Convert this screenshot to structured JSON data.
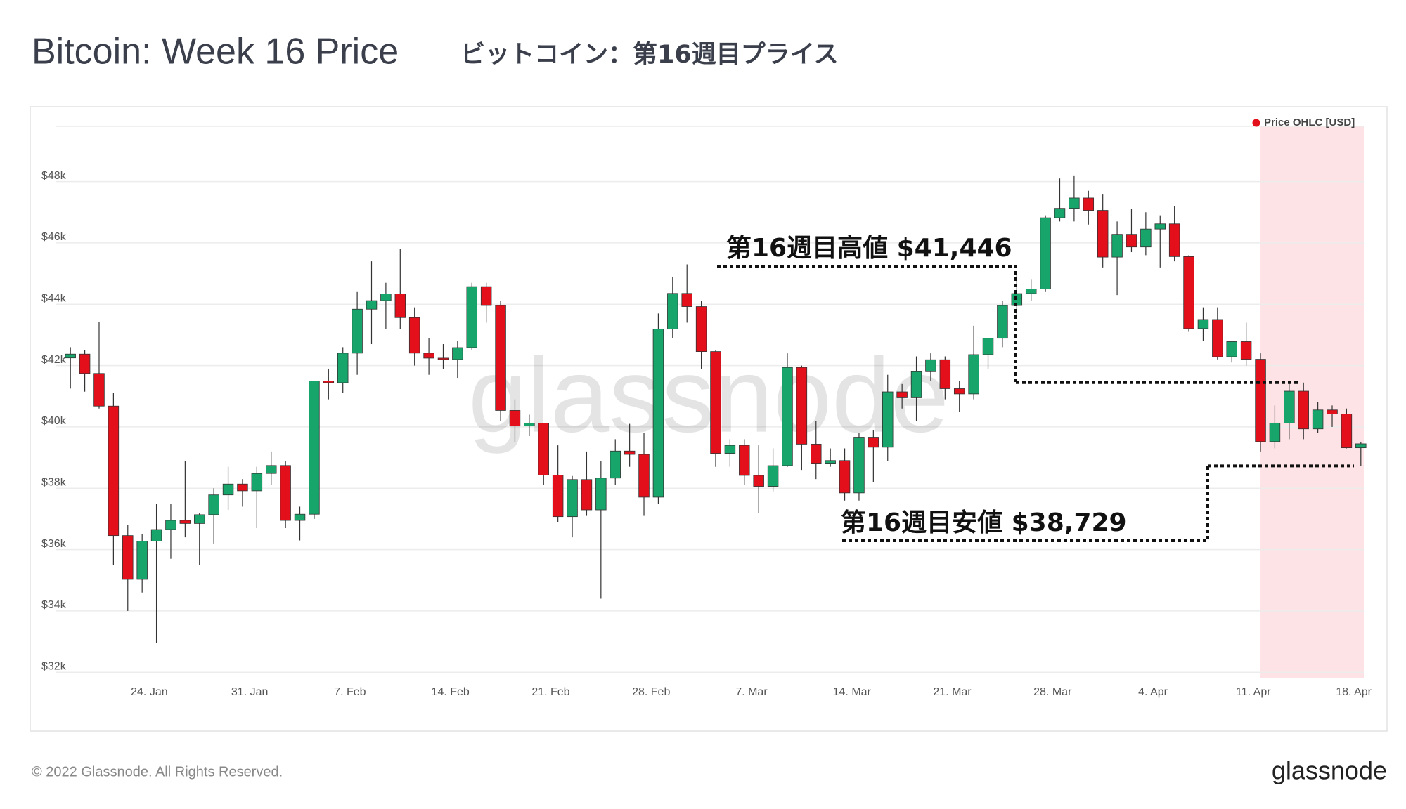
{
  "chart_data": {
    "type": "candlestick",
    "title": "Bitcoin: Week 16 Price",
    "subtitle": "ビットコイン：第16週目プライス",
    "watermark": "glassnode",
    "footer": "© 2022 Glassnode. All Rights Reserved.",
    "logo": "glassnode",
    "legend_position": "top-right",
    "grid": true,
    "categories": [
      null,
      null,
      null,
      null,
      null,
      null,
      "24. Jan",
      null,
      null,
      null,
      null,
      null,
      null,
      "31. Jan",
      null,
      null,
      null,
      null,
      null,
      null,
      "7. Feb",
      null,
      null,
      null,
      null,
      null,
      null,
      "14. Feb",
      null,
      null,
      null,
      null,
      null,
      null,
      "21. Feb",
      null,
      null,
      null,
      null,
      null,
      null,
      "28. Feb",
      null,
      null,
      null,
      null,
      null,
      null,
      "7. Mar",
      null,
      null,
      null,
      null,
      null,
      null,
      "14. Mar",
      null,
      null,
      null,
      null,
      null,
      null,
      "21. Mar",
      null,
      null,
      null,
      null,
      null,
      null,
      "28. Mar",
      null,
      null,
      null,
      null,
      null,
      null,
      "4. Apr",
      null,
      null,
      null,
      null,
      null,
      null,
      "11. Apr",
      null,
      null,
      null,
      null,
      null,
      null,
      "18. Apr"
    ],
    "series": [
      {
        "name": "Price OHLC [USD]",
        "color": "#e3101b",
        "up_color": "#17a56b",
        "down_color": "#e3101b",
        "open": [
          42250,
          42375,
          41744,
          40680,
          36457,
          35030,
          36276,
          36654,
          36954,
          36852,
          37138,
          37784,
          38138,
          37917,
          38483,
          38743,
          36952,
          37154,
          41500,
          41441,
          42406,
          43840,
          44118,
          44338,
          43565,
          42407,
          42244,
          42197,
          42586,
          44575,
          43961,
          40538,
          40030,
          40122,
          38431,
          37075,
          38286,
          37296,
          38332,
          39214,
          39105,
          37710,
          43194,
          44354,
          43925,
          42458,
          39138,
          39400,
          38420,
          38062,
          38738,
          41941,
          39439,
          38794,
          38904,
          37849,
          39666,
          39338,
          41143,
          40951,
          41801,
          42191,
          41247,
          41077,
          42358,
          42892,
          43960,
          44348,
          44500,
          46820,
          47128,
          47465,
          47062,
          45538,
          46281,
          45868,
          46453,
          46622,
          45555,
          43206,
          43503,
          42287,
          42782,
          42207,
          39521,
          40127,
          41166,
          39936,
          40553,
          40424,
          39320
        ],
        "high": [
          42600,
          42500,
          43430,
          41100,
          36800,
          36500,
          37500,
          37500,
          38900,
          37200,
          38000,
          38700,
          38300,
          38700,
          39200,
          38900,
          37400,
          41500,
          41900,
          42600,
          44400,
          45400,
          44700,
          45800,
          43900,
          42900,
          42700,
          42800,
          44700,
          44700,
          44100,
          40900,
          40400,
          40100,
          39400,
          38400,
          39200,
          38900,
          39600,
          40100,
          39800,
          43700,
          44900,
          45300,
          44100,
          42500,
          39600,
          39600,
          39400,
          39300,
          42400,
          42000,
          40200,
          39300,
          39300,
          39800,
          39900,
          41700,
          41400,
          42300,
          42400,
          42300,
          41500,
          43300,
          42900,
          44100,
          45000,
          44800,
          46900,
          48100,
          48200,
          47700,
          47600,
          46700,
          47100,
          47000,
          46900,
          47200,
          45600,
          43900,
          43900,
          42800,
          43400,
          42400,
          40700,
          41500,
          41446,
          40800,
          40700,
          40600,
          39500
        ],
        "low": [
          41250,
          41150,
          40600,
          35500,
          34000,
          34600,
          32950,
          35700,
          36400,
          35500,
          36200,
          37300,
          37400,
          36700,
          38100,
          36700,
          36300,
          37000,
          40900,
          41100,
          41700,
          42700,
          43200,
          43200,
          42000,
          41700,
          41900,
          41600,
          42500,
          43400,
          40200,
          39500,
          39700,
          38100,
          36900,
          36400,
          37100,
          34400,
          38100,
          38700,
          37100,
          37500,
          42900,
          43400,
          41900,
          38700,
          38700,
          38100,
          37200,
          37900,
          38700,
          38600,
          38300,
          38700,
          37600,
          37600,
          38200,
          38900,
          40600,
          40200,
          41500,
          40900,
          40500,
          40900,
          41900,
          42600,
          43600,
          44100,
          44400,
          46700,
          46700,
          46600,
          45200,
          44300,
          45700,
          45600,
          45200,
          45400,
          43100,
          42800,
          42200,
          42100,
          42000,
          39200,
          39300,
          39600,
          39600,
          39800,
          40000,
          39300,
          38729
        ],
        "close": [
          42375,
          41744,
          40680,
          36457,
          35030,
          36276,
          36654,
          36954,
          36852,
          37138,
          37784,
          38138,
          37917,
          38483,
          38743,
          36952,
          37154,
          41500,
          41441,
          42406,
          43840,
          44118,
          44338,
          43565,
          42407,
          42244,
          42197,
          42586,
          44575,
          43961,
          40538,
          40030,
          40122,
          38431,
          37075,
          38286,
          37296,
          38332,
          39214,
          39105,
          37710,
          43194,
          44354,
          43925,
          42458,
          39138,
          39400,
          38420,
          38062,
          38738,
          41941,
          39439,
          38794,
          38904,
          37849,
          39666,
          39338,
          41143,
          40951,
          41801,
          42191,
          41247,
          41077,
          42358,
          42892,
          43960,
          44348,
          44500,
          46820,
          47128,
          47465,
          47062,
          45538,
          46281,
          45868,
          46453,
          46622,
          45555,
          43206,
          43503,
          42287,
          42782,
          42207,
          39521,
          40127,
          41166,
          39936,
          40553,
          40424,
          39320,
          39450
        ]
      }
    ],
    "ylim": [
      31800,
      49800
    ],
    "yticks": [
      {
        "value": 32000,
        "label": "$32k"
      },
      {
        "value": 34000,
        "label": "$34k"
      },
      {
        "value": 36000,
        "label": "$36k"
      },
      {
        "value": 38000,
        "label": "$38k"
      },
      {
        "value": 40000,
        "label": "$40k"
      },
      {
        "value": 42000,
        "label": "$42k"
      },
      {
        "value": 44000,
        "label": "$44k"
      },
      {
        "value": 46000,
        "label": "$46k"
      },
      {
        "value": 48000,
        "label": "$48k"
      }
    ],
    "annotations": [
      {
        "label": "第16週目高値 $41,446",
        "value": 41446
      },
      {
        "label": "第16週目安値 $38,729",
        "value": 38729
      }
    ]
  }
}
